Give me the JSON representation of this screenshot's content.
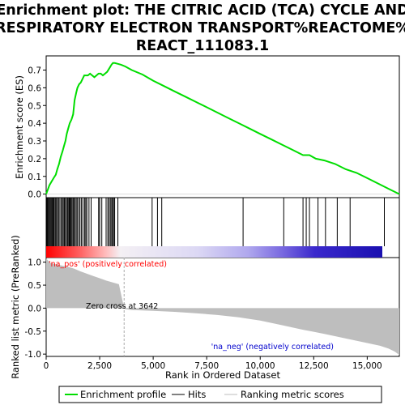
{
  "chart_data": {
    "type": "line",
    "title_lines": [
      "Enrichment plot: THE CITRIC ACID (TCA) CYCLE AND",
      "RESPIRATORY ELECTRON TRANSPORT%REACTOME%",
      "REACT_111083.1"
    ],
    "xlabel": "Rank in Ordered Dataset",
    "ylabel_top": "Enrichment score (ES)",
    "ylabel_bottom": "Ranked list metric (PreRanked)",
    "xlim": [
      0,
      16500
    ],
    "x_ticks": [
      0,
      2500,
      5000,
      7500,
      10000,
      12500,
      15000
    ],
    "x_tick_labels": [
      "0",
      "2,500",
      "5,000",
      "7,500",
      "10,000",
      "12,500",
      "15,000"
    ],
    "es_ylim": [
      -0.02,
      0.78
    ],
    "es_ticks": [
      0.0,
      0.1,
      0.2,
      0.3,
      0.4,
      0.5,
      0.6,
      0.7
    ],
    "es_tick_labels": [
      "0.0",
      "0.1",
      "0.2",
      "0.3",
      "0.4",
      "0.5",
      "0.6",
      "0.7"
    ],
    "metric_ylim": [
      -1.05,
      1.1
    ],
    "metric_ticks": [
      1.0,
      0.5,
      0.0,
      -0.5,
      -1.0
    ],
    "metric_tick_labels": [
      "1.0",
      "0.5",
      "0.0",
      "-0.5",
      "-1.0"
    ],
    "es_profile": {
      "x": [
        0,
        60,
        150,
        250,
        350,
        450,
        520,
        600,
        680,
        760,
        830,
        900,
        960,
        1030,
        1100,
        1180,
        1260,
        1330,
        1400,
        1460,
        1540,
        1620,
        1700,
        1780,
        1850,
        1950,
        2050,
        2150,
        2250,
        2350,
        2450,
        2550,
        2650,
        2750,
        2850,
        2950,
        3050,
        3120,
        3200,
        3350,
        3500,
        3700,
        4000,
        4500,
        5000,
        5500,
        6000,
        6500,
        7000,
        7500,
        8000,
        8500,
        9000,
        9500,
        10000,
        10500,
        11000,
        11500,
        12000,
        12300,
        12600,
        13000,
        13500,
        14000,
        14500,
        15000,
        15500,
        16000,
        16500
      ],
      "y": [
        0.0,
        0.02,
        0.05,
        0.07,
        0.09,
        0.11,
        0.14,
        0.17,
        0.21,
        0.24,
        0.27,
        0.3,
        0.34,
        0.37,
        0.4,
        0.42,
        0.45,
        0.53,
        0.57,
        0.6,
        0.62,
        0.63,
        0.65,
        0.67,
        0.67,
        0.67,
        0.68,
        0.67,
        0.66,
        0.67,
        0.68,
        0.68,
        0.67,
        0.68,
        0.69,
        0.71,
        0.73,
        0.74,
        0.74,
        0.735,
        0.73,
        0.72,
        0.7,
        0.675,
        0.64,
        0.61,
        0.58,
        0.55,
        0.52,
        0.49,
        0.46,
        0.43,
        0.4,
        0.37,
        0.34,
        0.31,
        0.28,
        0.25,
        0.22,
        0.22,
        0.2,
        0.19,
        0.17,
        0.14,
        0.12,
        0.09,
        0.06,
        0.03,
        0.0
      ]
    },
    "hits": [
      30,
      60,
      100,
      140,
      180,
      220,
      260,
      300,
      340,
      380,
      430,
      480,
      530,
      580,
      640,
      700,
      760,
      800,
      850,
      900,
      950,
      1000,
      1050,
      1080,
      1120,
      1150,
      1200,
      1250,
      1290,
      1340,
      1400,
      1450,
      1520,
      1580,
      1650,
      1720,
      1800,
      1850,
      1900,
      2000,
      2100,
      2450,
      2500,
      2600,
      2800,
      2880,
      2940,
      3000,
      3060,
      3100,
      3150,
      3200,
      3350,
      4950,
      5200,
      5400,
      9200,
      11100,
      12000,
      12150,
      12300,
      12700,
      13050,
      13600,
      14200,
      15800
    ],
    "metric_profile": {
      "x": [
        0,
        200,
        500,
        800,
        1000,
        1300,
        1600,
        1900,
        2200,
        2500,
        2800,
        3100,
        3400,
        3642,
        3700,
        4000,
        5000,
        6000,
        7000,
        8000,
        9000,
        10000,
        11000,
        12000,
        13000,
        14000,
        15000,
        15600,
        16000,
        16300,
        16500
      ],
      "y": [
        1.08,
        0.98,
        0.95,
        0.92,
        0.9,
        0.86,
        0.8,
        0.75,
        0.7,
        0.65,
        0.6,
        0.56,
        0.52,
        0.0,
        -0.02,
        -0.04,
        -0.06,
        -0.08,
        -0.11,
        -0.15,
        -0.2,
        -0.27,
        -0.37,
        -0.47,
        -0.56,
        -0.66,
        -0.76,
        -0.82,
        -0.88,
        -0.95,
        -1.02
      ]
    },
    "zero_cross": 3642,
    "zero_cross_label": "Zero cross at 3642",
    "pos_label": "'na_pos' (positively correlated)",
    "neg_label": "'na_neg' (negatively correlated)",
    "legend": [
      "Enrichment profile",
      "Hits",
      "Ranking metric scores"
    ],
    "colors": {
      "profile": "#00dd00",
      "hits": "#000000",
      "metric": "#bebebe",
      "pos_label": "#ff0000",
      "neg_label": "#0000cc",
      "zero_line": "#aaaaaa"
    }
  }
}
